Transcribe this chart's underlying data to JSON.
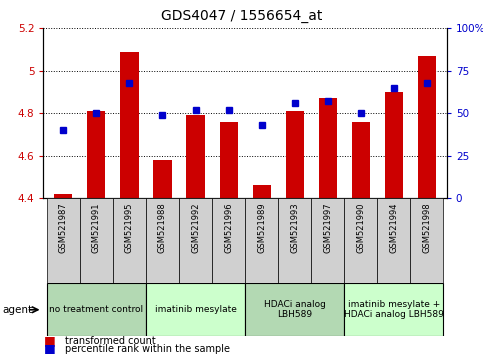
{
  "title": "GDS4047 / 1556654_at",
  "samples": [
    "GSM521987",
    "GSM521991",
    "GSM521995",
    "GSM521988",
    "GSM521992",
    "GSM521996",
    "GSM521989",
    "GSM521993",
    "GSM521997",
    "GSM521990",
    "GSM521994",
    "GSM521998"
  ],
  "bar_values": [
    4.42,
    4.81,
    5.09,
    4.58,
    4.79,
    4.76,
    4.46,
    4.81,
    4.87,
    4.76,
    4.9,
    5.07
  ],
  "percentile_values": [
    40,
    50,
    68,
    49,
    52,
    52,
    43,
    56,
    57,
    50,
    65,
    68
  ],
  "bar_bottom": 4.4,
  "ylim_left": [
    4.4,
    5.2
  ],
  "ylim_right": [
    0,
    100
  ],
  "yticks_left": [
    4.4,
    4.6,
    4.8,
    5.0,
    5.2
  ],
  "ytick_labels_left": [
    "4.4",
    "4.6",
    "4.8",
    "5",
    "5.2"
  ],
  "yticks_right": [
    0,
    25,
    50,
    75,
    100
  ],
  "ytick_labels_right": [
    "0",
    "25",
    "50",
    "75",
    "100%"
  ],
  "groups": [
    {
      "label": "no treatment control",
      "start": 0,
      "end": 3,
      "color": "#b3d9b3"
    },
    {
      "label": "imatinib mesylate",
      "start": 3,
      "end": 6,
      "color": "#ccffcc"
    },
    {
      "label": "HDACi analog\nLBH589",
      "start": 6,
      "end": 9,
      "color": "#b3d9b3"
    },
    {
      "label": "imatinib mesylate +\nHDACi analog LBH589",
      "start": 9,
      "end": 12,
      "color": "#ccffcc"
    }
  ],
  "bar_color": "#cc0000",
  "dot_color": "#0000cc",
  "agent_label": "agent",
  "legend_bar_label": "transformed count",
  "legend_dot_label": "percentile rank within the sample",
  "tick_color_left": "#cc0000",
  "tick_color_right": "#0000cc",
  "bar_width": 0.55,
  "sample_box_color": "#d0d0d0",
  "background_color": "#ffffff",
  "spine_color": "#000000"
}
